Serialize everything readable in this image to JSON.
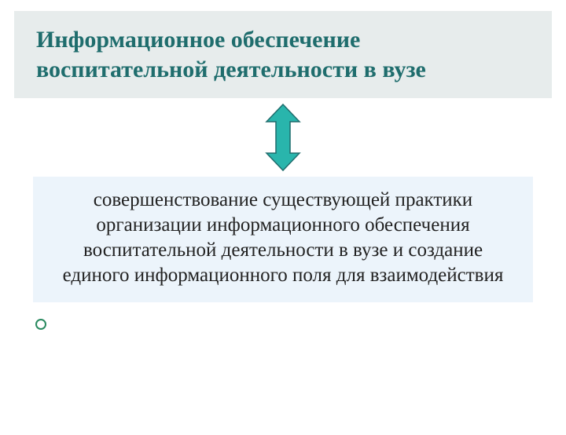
{
  "type": "infographic-slide",
  "background_color": "#ffffff",
  "title": {
    "text": "Информационное обеспечение воспитательной деятельности в вузе",
    "background_color": "#e7ecec",
    "text_color": "#1f6d6d",
    "font_size": 30,
    "font_weight": "bold"
  },
  "arrow": {
    "fill": "#29b5ac",
    "stroke": "#1f6d6d",
    "width": 46,
    "height": 88
  },
  "body": {
    "text": "совершенствование существующей практики организации информационного обеспечения воспитательной деятельности в вузе и создание единого информационного поля для взаимодействия",
    "background_color": "#ecf4fb",
    "text_color": "#222222",
    "font_size": 25
  },
  "bullet": {
    "border_color": "#2a8a60",
    "fill_color": "#ffffff"
  }
}
